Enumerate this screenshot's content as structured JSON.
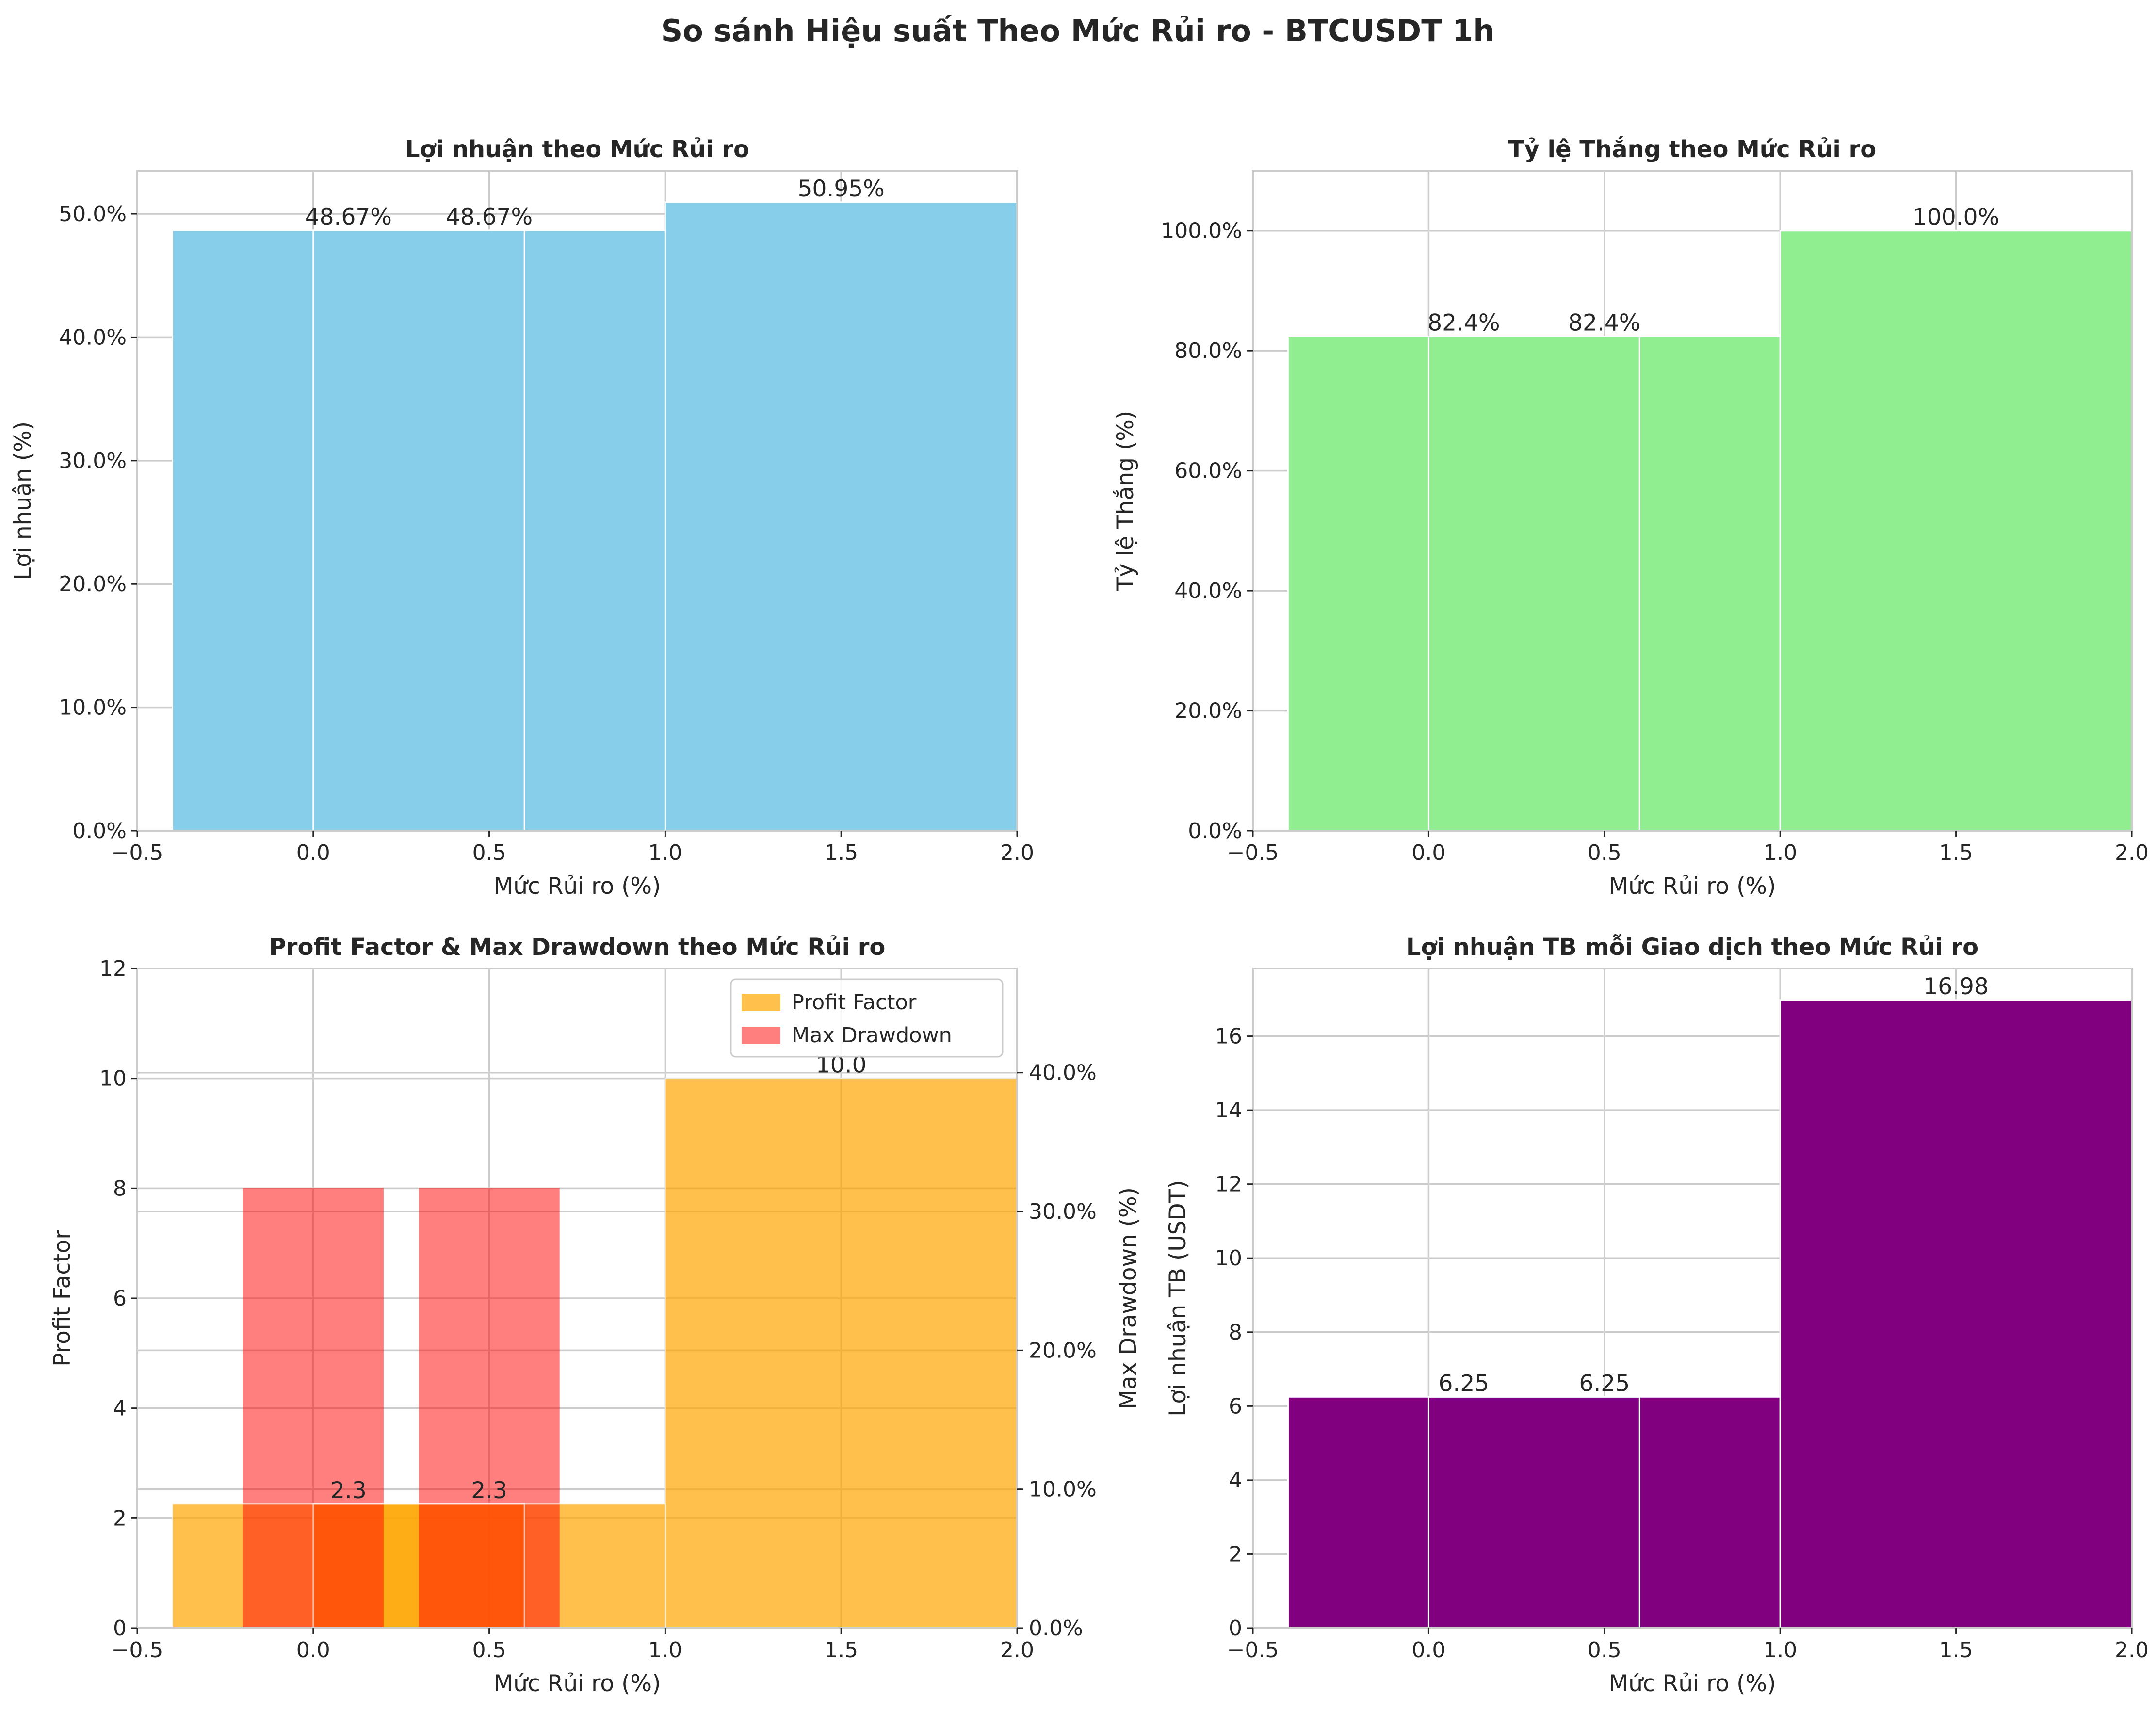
{
  "suptitle": "So sánh Hiệu suất Theo Mức Rủi ro - BTCUSDT 1h",
  "chart_data": [
    {
      "id": "profit",
      "type": "bar",
      "title": "Lợi nhuận theo Mức Rủi ro",
      "xlabel": "Mức Rủi ro (%)",
      "ylabel": "Lợi nhuận (%)",
      "x": [
        0.1,
        0.5,
        1.5
      ],
      "values": [
        48.67,
        48.67,
        50.95
      ],
      "value_labels": [
        "48.67%",
        "48.67%",
        "50.95%"
      ],
      "bar_width": 1.0,
      "color": "#87CEEB",
      "xlim": [
        -0.5,
        2.0
      ],
      "ylim": [
        0,
        53.5
      ],
      "xticks": [
        -0.5,
        0.0,
        0.5,
        1.0,
        1.5,
        2.0
      ],
      "xtick_labels": [
        "−0.5",
        "0.0",
        "0.5",
        "1.0",
        "1.5",
        "2.0"
      ],
      "yticks": [
        0,
        10,
        20,
        30,
        40,
        50
      ],
      "ytick_labels": [
        "0.0%",
        "10.0%",
        "20.0%",
        "30.0%",
        "40.0%",
        "50.0%"
      ],
      "grid": true
    },
    {
      "id": "winrate",
      "type": "bar",
      "title": "Tỷ lệ Thắng theo Mức Rủi ro",
      "xlabel": "Mức Rủi ro (%)",
      "ylabel": "Tỷ lệ Thắng (%)",
      "x": [
        0.1,
        0.5,
        1.5
      ],
      "values": [
        82.4,
        82.4,
        100.0
      ],
      "value_labels": [
        "82.4%",
        "82.4%",
        "100.0%"
      ],
      "bar_width": 1.0,
      "color": "#90EE90",
      "xlim": [
        -0.5,
        2.0
      ],
      "ylim": [
        0,
        110
      ],
      "xticks": [
        -0.5,
        0.0,
        0.5,
        1.0,
        1.5,
        2.0
      ],
      "xtick_labels": [
        "−0.5",
        "0.0",
        "0.5",
        "1.0",
        "1.5",
        "2.0"
      ],
      "yticks": [
        0,
        20,
        40,
        60,
        80,
        100
      ],
      "ytick_labels": [
        "0.0%",
        "20.0%",
        "40.0%",
        "60.0%",
        "80.0%",
        "100.0%"
      ],
      "grid": true
    },
    {
      "id": "pf_dd",
      "type": "bar",
      "title": "Profit Factor & Max Drawdown theo Mức Rủi ro",
      "xlabel": "Mức Rủi ro (%)",
      "ylabel": "Profit Factor",
      "y2label": "Max Drawdown (%)",
      "legend_position": "top-right",
      "xlim": [
        -0.5,
        2.0
      ],
      "ylim": [
        0,
        12
      ],
      "y2lim": [
        0,
        47.5
      ],
      "xticks": [
        -0.5,
        0.0,
        0.5,
        1.0,
        1.5,
        2.0
      ],
      "xtick_labels": [
        "−0.5",
        "0.0",
        "0.5",
        "1.0",
        "1.5",
        "2.0"
      ],
      "yticks": [
        0,
        2,
        4,
        6,
        8,
        10,
        12
      ],
      "ytick_labels": [
        "0",
        "2",
        "4",
        "6",
        "8",
        "10",
        "12"
      ],
      "y2ticks": [
        0,
        10,
        20,
        30,
        40
      ],
      "y2tick_labels": [
        "0.0%",
        "10.0%",
        "20.0%",
        "30.0%",
        "40.0%"
      ],
      "grid": true,
      "series": [
        {
          "name": "Profit Factor",
          "axis": "left",
          "x": [
            0.1,
            0.5,
            1.5
          ],
          "values": [
            2.26,
            2.26,
            10.0
          ],
          "value_labels": [
            "2.3",
            "2.3",
            "10.0"
          ],
          "bar_width": 1.0,
          "color": "#FFA500",
          "opacity": 0.7
        },
        {
          "name": "Max Drawdown",
          "axis": "right",
          "x": [
            0.0,
            0.5
          ],
          "values": [
            31.7,
            31.7
          ],
          "bar_width": 0.4,
          "color": "#FF0000",
          "opacity": 0.5
        }
      ]
    },
    {
      "id": "avgprofit",
      "type": "bar",
      "title": "Lợi nhuận TB mỗi Giao dịch theo Mức Rủi ro",
      "xlabel": "Mức Rủi ro (%)",
      "ylabel": "Lợi nhuận TB (USDT)",
      "x": [
        0.1,
        0.5,
        1.5
      ],
      "values": [
        6.25,
        6.25,
        16.98
      ],
      "value_labels": [
        "6.25",
        "6.25",
        "16.98"
      ],
      "bar_width": 1.0,
      "color": "#800080",
      "xlim": [
        -0.5,
        2.0
      ],
      "ylim": [
        0,
        17.83
      ],
      "xticks": [
        -0.5,
        0.0,
        0.5,
        1.0,
        1.5,
        2.0
      ],
      "xtick_labels": [
        "−0.5",
        "0.0",
        "0.5",
        "1.0",
        "1.5",
        "2.0"
      ],
      "yticks": [
        0,
        2,
        4,
        6,
        8,
        10,
        12,
        14,
        16
      ],
      "ytick_labels": [
        "0",
        "2",
        "4",
        "6",
        "8",
        "10",
        "12",
        "14",
        "16"
      ],
      "grid": true
    }
  ]
}
